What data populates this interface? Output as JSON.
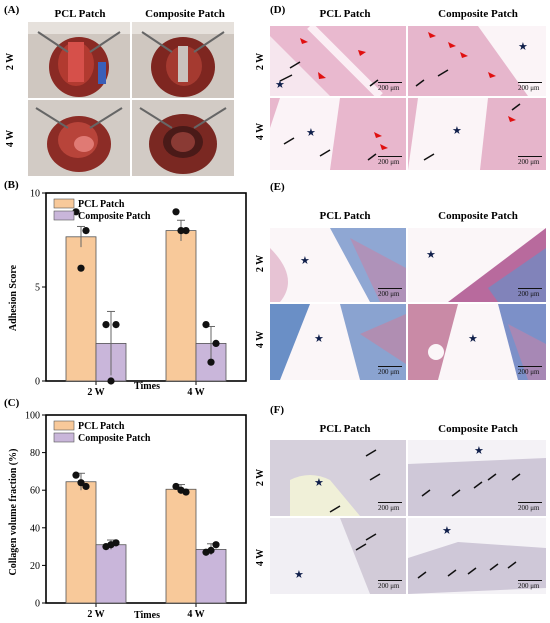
{
  "panels": {
    "A": {
      "label": "(A)",
      "columns": [
        "PCL Patch",
        "Composite Patch"
      ],
      "rows": [
        "2 W",
        "4 W"
      ]
    },
    "B": {
      "label": "(B)"
    },
    "C": {
      "label": "(C)"
    },
    "D": {
      "label": "(D)",
      "columns": [
        "PCL Patch",
        "Composite Patch"
      ],
      "rows": [
        "2 W",
        "4 W"
      ],
      "scale": "200 μm"
    },
    "E": {
      "label": "(E)",
      "columns": [
        "PCL Patch",
        "Composite Patch"
      ],
      "rows": [
        "2 W",
        "4 W"
      ],
      "scale": "200 μm"
    },
    "F": {
      "label": "(F)",
      "columns": [
        "PCL Patch",
        "Composite Patch"
      ],
      "rows": [
        "2 W",
        "4 W"
      ],
      "scale": "200 μm"
    }
  },
  "colors": {
    "pcl_bar": "#f8c99a",
    "composite_bar": "#c9b6da",
    "he_stain": "#e8b4cc",
    "masson_blue": "#6a8fc6",
    "ihc_gray": "#c9c2d4",
    "red_arrow": "#e01010",
    "star": "#0f1e4a"
  },
  "chart_data": [
    {
      "panel": "B",
      "type": "bar",
      "categories": [
        "2 W",
        "4 W"
      ],
      "series": [
        {
          "name": "PCL Patch",
          "values": [
            7.67,
            8.0
          ],
          "errors": [
            0.55,
            0.55
          ],
          "points": [
            [
              9,
              8,
              6
            ],
            [
              9,
              8,
              8
            ]
          ]
        },
        {
          "name": "Composite Patch",
          "values": [
            2.0,
            2.0
          ],
          "errors": [
            1.7,
            0.9
          ],
          "points": [
            [
              3,
              3,
              0
            ],
            [
              3,
              2,
              1
            ]
          ]
        }
      ],
      "xlabel": "Times",
      "ylabel": "Adhesion Score",
      "ylim": [
        0,
        10
      ],
      "yticks": [
        0,
        5,
        10
      ],
      "legend": "top-left"
    },
    {
      "panel": "C",
      "type": "bar",
      "categories": [
        "2 W",
        "4 W"
      ],
      "series": [
        {
          "name": "PCL Patch",
          "values": [
            64.5,
            60.5
          ],
          "errors": [
            4.5,
            2.5
          ],
          "points": [
            [
              68,
              62,
              64
            ],
            [
              62,
              59,
              60
            ]
          ]
        },
        {
          "name": "Composite Patch",
          "values": [
            31.0,
            28.5
          ],
          "errors": [
            2.5,
            3.0
          ],
          "points": [
            [
              30,
              32,
              31
            ],
            [
              27,
              31,
              28
            ]
          ]
        }
      ],
      "xlabel": "Times",
      "ylabel": "Collagen volume fraction (%)",
      "ylim": [
        0,
        100
      ],
      "yticks": [
        0,
        20,
        40,
        60,
        80,
        100
      ],
      "legend": "top-left"
    }
  ]
}
